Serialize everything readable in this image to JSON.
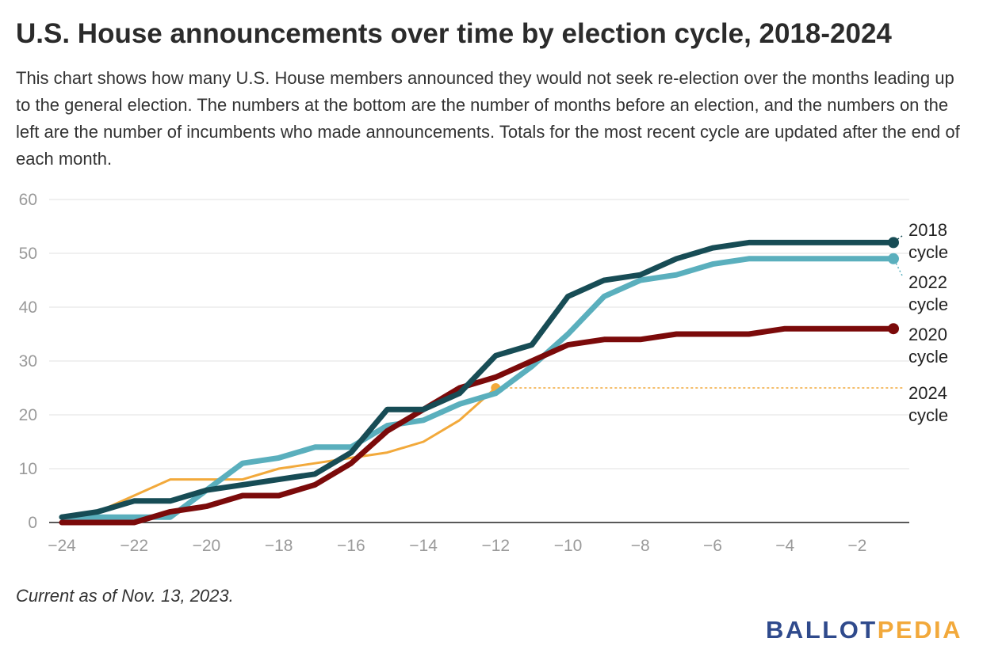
{
  "title": "U.S. House announcements over time by election cycle, 2018-2024",
  "description": "This chart shows how many U.S. House members announced they would not seek re-election over the months leading up to the general election. The numbers at the bottom are the number of months before an election, and the numbers on the left are the number of incumbents who made announcements. Totals for the most recent cycle are updated after the end of each month.",
  "footnote": "Current as of Nov. 13, 2023.",
  "logo": {
    "part1": "BALLOT",
    "part2": "PEDIA"
  },
  "chart_data": {
    "type": "line",
    "xlabel": "",
    "ylabel": "",
    "xlim": [
      -24,
      -1
    ],
    "ylim": [
      0,
      60
    ],
    "x_ticks": [
      -24,
      -22,
      -20,
      -18,
      -16,
      -14,
      -12,
      -10,
      -8,
      -6,
      -4,
      -2
    ],
    "y_ticks": [
      0,
      10,
      20,
      30,
      40,
      50,
      60
    ],
    "grid": true,
    "x": [
      -24,
      -23,
      -22,
      -21,
      -20,
      -19,
      -18,
      -17,
      -16,
      -15,
      -14,
      -13,
      -12,
      -11,
      -10,
      -9,
      -8,
      -7,
      -6,
      -5,
      -4,
      -3,
      -2,
      -1
    ],
    "series": [
      {
        "name": "2024 cycle",
        "line1": "2024",
        "line2": "cycle",
        "color": "#f2a93b",
        "values": [
          0,
          2,
          5,
          8,
          8,
          8,
          10,
          11,
          12,
          13,
          15,
          19,
          25,
          null,
          null,
          null,
          null,
          null,
          null,
          null,
          null,
          null,
          null,
          null
        ]
      },
      {
        "name": "2022 cycle",
        "line1": "2022",
        "line2": "cycle",
        "color": "#5aafbd",
        "values": [
          1,
          1,
          1,
          1,
          6,
          11,
          12,
          14,
          14,
          18,
          19,
          22,
          24,
          29,
          35,
          42,
          45,
          46,
          48,
          49,
          49,
          49,
          49,
          49
        ]
      },
      {
        "name": "2020 cycle",
        "line1": "2020",
        "line2": "cycle",
        "color": "#7b0a0a",
        "values": [
          0,
          0,
          0,
          2,
          3,
          5,
          5,
          7,
          11,
          17,
          21,
          25,
          27,
          30,
          33,
          34,
          34,
          35,
          35,
          35,
          36,
          36,
          36,
          36
        ]
      },
      {
        "name": "2018 cycle",
        "line1": "2018",
        "line2": "cycle",
        "color": "#174c55",
        "values": [
          1,
          2,
          4,
          4,
          6,
          7,
          8,
          9,
          13,
          21,
          21,
          24,
          31,
          33,
          42,
          45,
          46,
          49,
          51,
          52,
          52,
          52,
          52,
          52
        ]
      }
    ]
  }
}
